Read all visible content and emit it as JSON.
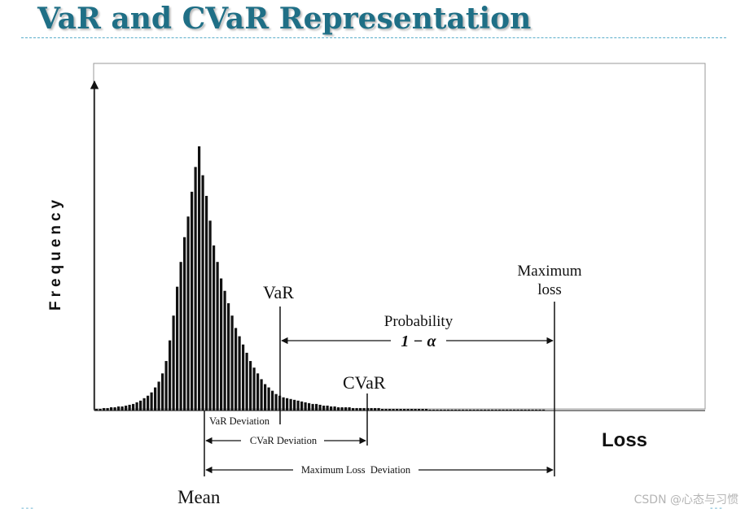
{
  "slide": {
    "title": "VaR and CVaR Representation",
    "watermark": "CSDN @心态与习惯",
    "corner_mark_left": "---",
    "corner_mark_right": "---"
  },
  "diagram": {
    "y_axis_label": "Frequency",
    "x_axis_label": "Loss",
    "var_label": "VaR",
    "cvar_label": "CVaR",
    "max_loss_label_line1": "Maximum",
    "max_loss_label_line2": "loss",
    "probability_label": "Probability",
    "probability_expr": "1 − α",
    "mean_label": "Mean",
    "var_deviation_label": "VaR Deviation",
    "cvar_deviation_label": "CVaR Deviation",
    "max_loss_deviation_label": "Maximum Loss  Deviation"
  },
  "chart_data": {
    "type": "bar",
    "histogram_heights": [
      2,
      2,
      3,
      3,
      4,
      4,
      5,
      5,
      6,
      7,
      8,
      10,
      12,
      15,
      18,
      22,
      28,
      35,
      45,
      60,
      85,
      115,
      150,
      180,
      210,
      235,
      265,
      295,
      320,
      285,
      260,
      230,
      200,
      180,
      160,
      145,
      130,
      115,
      100,
      90,
      80,
      70,
      60,
      52,
      45,
      38,
      32,
      28,
      24,
      20,
      18,
      16,
      15,
      14,
      13,
      12,
      11,
      10,
      9,
      8,
      8,
      7,
      6,
      6,
      5,
      5,
      4,
      4,
      4,
      4,
      3,
      3,
      3,
      3,
      3,
      3,
      3,
      3,
      2,
      2,
      2,
      2,
      2,
      2,
      2,
      2,
      2,
      2,
      2,
      2,
      2,
      1,
      1,
      1,
      1,
      1,
      1,
      1,
      1,
      1,
      1,
      1,
      1,
      1,
      1,
      1,
      1,
      1,
      0,
      0,
      1,
      1,
      0,
      0,
      0,
      1,
      0,
      0,
      0,
      0,
      0,
      1,
      1
    ]
  }
}
